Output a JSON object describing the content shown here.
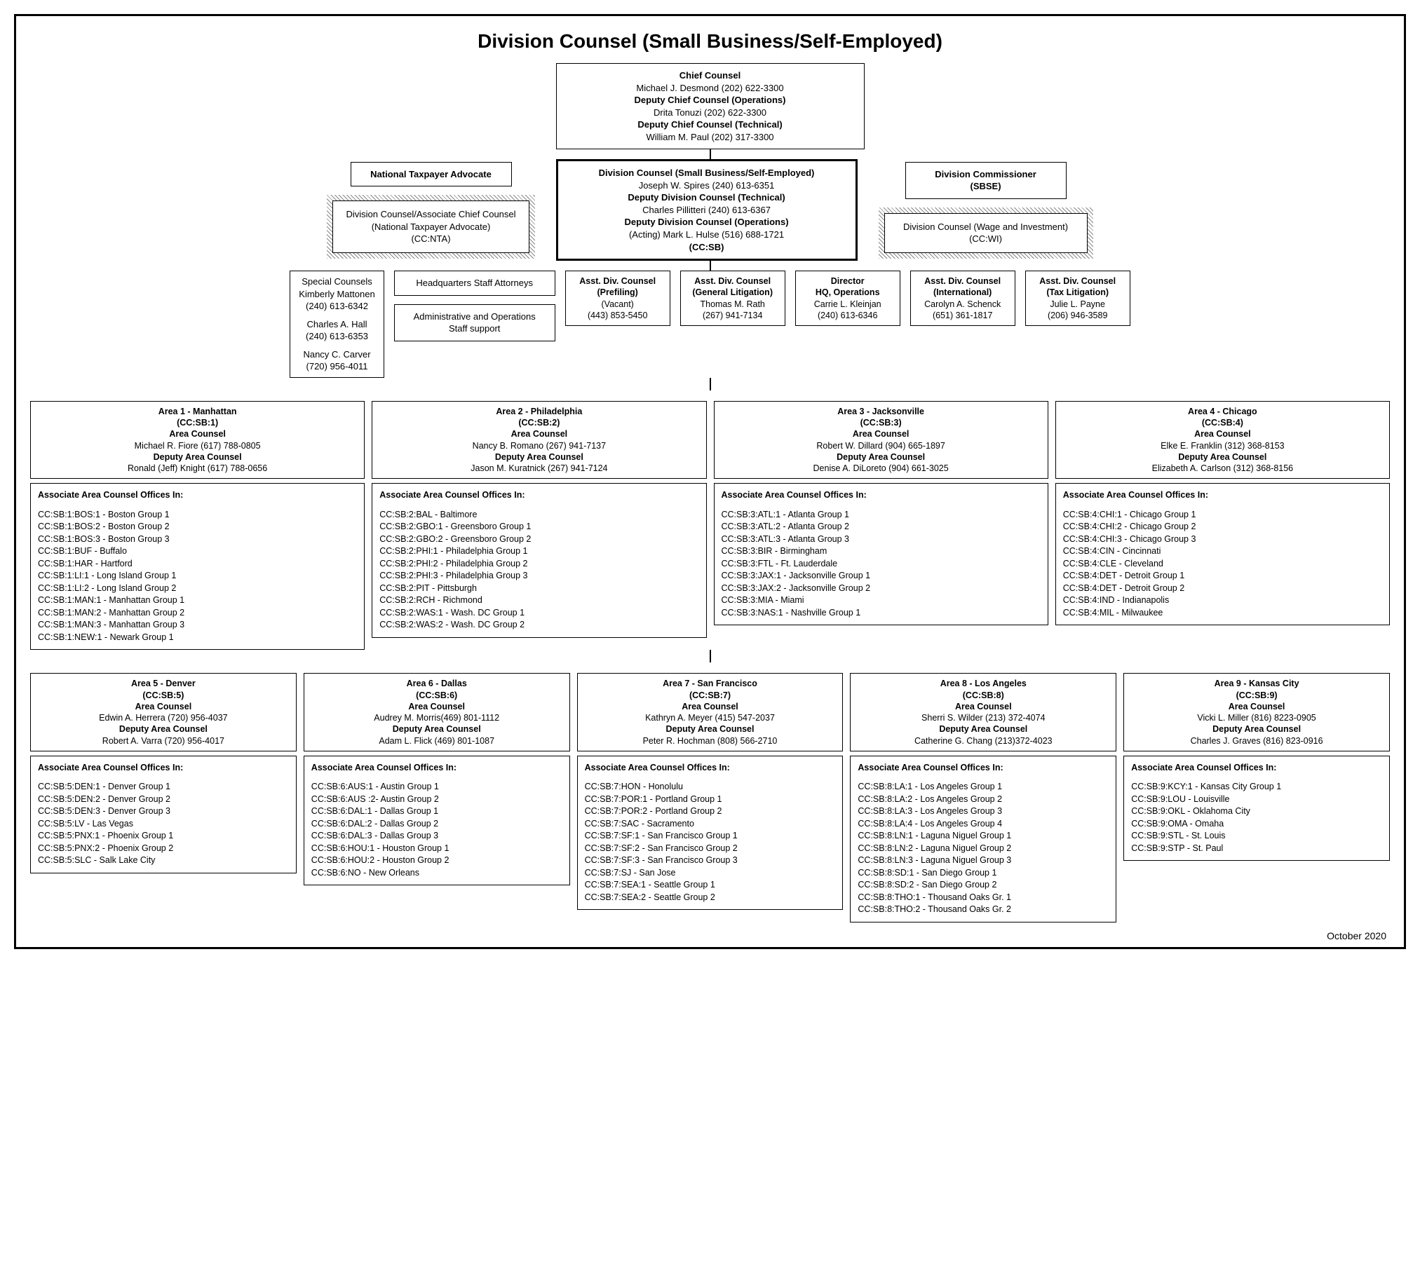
{
  "title": "Division Counsel (Small Business/Self-Employed)",
  "footer_date": "October 2020",
  "top": {
    "chief_counsel_title": "Chief Counsel",
    "chief_counsel_name": "Michael J. Desmond  (202) 622-3300",
    "dcc_ops_title": "Deputy Chief Counsel (Operations)",
    "dcc_ops_name": "Drita Tonuzi  (202) 622-3300",
    "dcc_tech_title": "Deputy Chief Counsel (Technical)",
    "dcc_tech_name": "William M. Paul  (202) 317-3300"
  },
  "nta_label": "National Taxpayer Advocate",
  "div_commissioner": {
    "line1": "Division Commissioner",
    "line2": "(SBSE)"
  },
  "nta_box": {
    "line1": "Division Counsel/Associate Chief Counsel",
    "line2": "(National Taxpayer Advocate)",
    "line3": "(CC:NTA)"
  },
  "center": {
    "l1": "Division Counsel (Small Business/Self-Employed)",
    "l2": "Joseph W. Spires  (240) 613-6351",
    "l3": "Deputy Division Counsel (Technical)",
    "l4": "Charles Pillitteri (240) 613-6367",
    "l5": "Deputy Division Counsel (Operations)",
    "l6": "(Acting)  Mark L. Hulse  (516) 688-1721",
    "l7": "(CC:SB)"
  },
  "wi_box": {
    "line1": "Division Counsel (Wage and Investment)",
    "line2": "(CC:WI)"
  },
  "special_counsels": {
    "title": "Special Counsels",
    "p1_name": "Kimberly Mattonen",
    "p1_phone": "(240) 613-6342",
    "p2_name": "Charles A. Hall",
    "p2_phone": "(240) 613-6353",
    "p3_name": "Nancy C. Carver",
    "p3_phone": "(720) 956-4011"
  },
  "hq_staff": "Headquarters Staff Attorneys",
  "admin_ops": {
    "l1": "Administrative and Operations",
    "l2": "Staff support"
  },
  "adc": {
    "prefiling": {
      "t": "Asst. Div. Counsel",
      "s": "(Prefiling)",
      "n": "(Vacant)",
      "p": "(443)  853-5450"
    },
    "genlit": {
      "t": "Asst. Div. Counsel",
      "s": "(General Litigation)",
      "n": "Thomas M. Rath",
      "p": "(267) 941-7134"
    },
    "director": {
      "t": "Director",
      "s": "HQ, Operations",
      "n": "Carrie L. Kleinjan",
      "p": "(240) 613-6346"
    },
    "intl": {
      "t": "Asst. Div. Counsel",
      "s": "(International)",
      "n": "Carolyn A. Schenck",
      "p": "(651) 361-1817"
    },
    "taxlit": {
      "t": "Asst. Div. Counsel",
      "s": "(Tax Litigation)",
      "n": "Julie L. Payne",
      "p": "(206) 946-3589"
    }
  },
  "areas_top": [
    {
      "title": "Area 1  -  Manhattan",
      "code": "(CC:SB:1)",
      "ac_label": "Area Counsel",
      "ac": "Michael R. Fiore  (617) 788-0805",
      "dac_label": "Deputy Area Counsel",
      "dac": "Ronald (Jeff) Knight  (617) 788-0656",
      "offices": [
        "CC:SB:1:BOS:1 - Boston Group 1",
        "CC:SB:1:BOS:2 - Boston Group 2",
        "CC:SB:1:BOS:3 - Boston Group 3",
        "CC:SB:1:BUF - Buffalo",
        "CC:SB:1:HAR - Hartford",
        "CC:SB:1:LI:1 - Long Island Group 1",
        "CC:SB:1:LI:2 - Long Island Group 2",
        "CC:SB:1:MAN:1 - Manhattan Group 1",
        "CC:SB:1:MAN:2 - Manhattan Group 2",
        "CC:SB:1:MAN:3 - Manhattan Group 3",
        "CC:SB:1:NEW:1 - Newark Group 1"
      ]
    },
    {
      "title": "Area 2  -  Philadelphia",
      "code": "(CC:SB:2)",
      "ac_label": "Area Counsel",
      "ac": "Nancy B. Romano (267) 941-7137",
      "dac_label": "Deputy Area Counsel",
      "dac": "Jason M. Kuratnick (267) 941-7124",
      "offices": [
        "CC:SB:2:BAL - Baltimore",
        "CC:SB:2:GBO:1 - Greensboro Group 1",
        "CC:SB:2:GBO:2 - Greensboro Group 2",
        "CC:SB:2:PHI:1 - Philadelphia Group 1",
        "CC:SB:2:PHI:2 - Philadelphia Group 2",
        "CC:SB:2:PHI:3 - Philadelphia Group 3",
        "CC:SB:2:PIT - Pittsburgh",
        "CC:SB:2:RCH - Richmond",
        "CC:SB:2:WAS:1 - Wash. DC Group 1",
        "CC:SB:2:WAS:2 - Wash. DC Group 2"
      ]
    },
    {
      "title": "Area 3 - Jacksonville",
      "code": "(CC:SB:3)",
      "ac_label": "Area Counsel",
      "ac": "Robert W. Dillard (904) 665-1897",
      "dac_label": "Deputy Area Counsel",
      "dac": "Denise A. DiLoreto (904) 661-3025",
      "offices": [
        "CC:SB:3:ATL:1 - Atlanta Group 1",
        "CC:SB:3:ATL:2 - Atlanta Group 2",
        "CC:SB:3:ATL:3 - Atlanta Group 3",
        "CC:SB:3:BIR - Birmingham",
        "CC:SB:3:FTL - Ft. Lauderdale",
        "CC:SB:3:JAX:1 - Jacksonville Group 1",
        "CC:SB:3:JAX:2 - Jacksonville Group 2",
        "CC:SB:3:MIA - Miami",
        "CC:SB:3:NAS:1 - Nashville Group 1"
      ]
    },
    {
      "title": "Area 4  -  Chicago",
      "code": "(CC:SB:4)",
      "ac_label": "Area Counsel",
      "ac": "Elke E. Franklin (312) 368-8153",
      "dac_label": "Deputy Area Counsel",
      "dac": "Elizabeth A. Carlson  (312) 368-8156",
      "offices": [
        "CC:SB:4:CHI:1 - Chicago Group 1",
        "CC:SB:4:CHI:2 - Chicago Group 2",
        "CC:SB:4:CHI:3 - Chicago Group 3",
        "CC:SB:4:CIN - Cincinnati",
        "CC:SB:4:CLE - Cleveland",
        "CC:SB:4:DET - Detroit Group 1",
        "CC:SB:4:DET - Detroit Group 2",
        "CC:SB:4:IND - Indianapolis",
        "CC:SB:4:MIL - Milwaukee"
      ]
    }
  ],
  "areas_bottom": [
    {
      "title": "Area 5 - Denver",
      "code": "(CC:SB:5)",
      "ac_label": "Area Counsel",
      "ac": "Edwin A. Herrera  (720) 956-4037",
      "dac_label": "Deputy Area Counsel",
      "dac": "Robert A. Varra  (720) 956-4017",
      "offices": [
        "CC:SB:5:DEN:1 - Denver Group 1",
        "CC:SB:5:DEN:2 - Denver Group 2",
        "CC:SB:5:DEN:3 - Denver Group 3",
        "CC:SB:5:LV - Las Vegas",
        "CC:SB:5:PNX:1 - Phoenix Group 1",
        "CC:SB:5:PNX:2 - Phoenix Group 2",
        "CC:SB:5:SLC - Salk Lake City"
      ]
    },
    {
      "title": "Area 6 - Dallas",
      "code": "(CC:SB:6)",
      "ac_label": "Area Counsel",
      "ac": "Audrey M. Morris(469) 801-1112",
      "dac_label": "Deputy Area Counsel",
      "dac": "Adam L. Flick (469) 801-1087",
      "offices": [
        "CC:SB:6:AUS:1 - Austin Group 1",
        "CC:SB:6:AUS :2- Austin Group 2",
        "CC:SB:6:DAL:1 - Dallas Group 1",
        "CC:SB:6:DAL:2 - Dallas Group 2",
        "CC:SB:6:DAL:3 - Dallas Group 3",
        "CC:SB:6:HOU:1 - Houston Group 1",
        "CC:SB:6:HOU:2 - Houston Group 2",
        "CC:SB:6:NO - New Orleans"
      ]
    },
    {
      "title": "Area 7 - San Francisco",
      "code": "(CC:SB:7)",
      "ac_label": "Area Counsel",
      "ac": "Kathryn A. Meyer  (415) 547-2037",
      "dac_label": "Deputy Area Counsel",
      "dac": "Peter R. Hochman (808) 566-2710",
      "offices": [
        "CC:SB:7:HON - Honolulu",
        "CC:SB:7:POR:1 - Portland Group 1",
        "CC:SB:7:POR:2 - Portland Group 2",
        "CC:SB:7:SAC - Sacramento",
        "CC:SB:7:SF:1 - San Francisco Group 1",
        "CC:SB:7:SF:2 - San Francisco Group 2",
        "CC:SB:7:SF:3 - San Francisco Group 3",
        "CC:SB:7:SJ - San Jose",
        "CC:SB:7:SEA:1 - Seattle Group 1",
        "CC:SB:7:SEA:2 - Seattle Group 2"
      ]
    },
    {
      "title": "Area 8  -  Los Angeles",
      "code": "(CC:SB:8)",
      "ac_label": "Area Counsel",
      "ac": "Sherri S. Wilder (213) 372-4074",
      "dac_label": "Deputy Area Counsel",
      "dac": "Catherine G. Chang  (213)372-4023",
      "offices": [
        "CC:SB:8:LA:1 - Los Angeles Group 1",
        "CC:SB:8:LA:2 - Los Angeles Group 2",
        "CC:SB:8:LA:3 - Los Angeles Group 3",
        "CC:SB:8:LA:4 - Los Angeles Group 4",
        "CC:SB:8:LN:1 - Laguna Niguel Group 1",
        "CC:SB:8:LN:2 - Laguna Niguel Group 2",
        "CC:SB:8:LN:3 - Laguna Niguel Group 3",
        "CC:SB:8:SD:1 - San Diego Group 1",
        "CC:SB:8:SD:2 - San Diego Group 2",
        "CC:SB:8:THO:1 - Thousand Oaks Gr. 1",
        "CC:SB:8:THO:2 - Thousand Oaks Gr. 2"
      ]
    },
    {
      "title": "Area 9  -  Kansas City",
      "code": "(CC:SB:9)",
      "ac_label": "Area Counsel",
      "ac": "Vicki L. Miller  (816) 8223-0905",
      "dac_label": "Deputy Area Counsel",
      "dac": "Charles J. Graves  (816) 823-0916",
      "offices": [
        "CC:SB:9:KCY:1 - Kansas City Group 1",
        "CC:SB:9:LOU - Louisville",
        "CC:SB:9:OKL - Oklahoma City",
        "CC:SB:9:OMA - Omaha",
        "CC:SB:9:STL - St. Louis",
        "CC:SB:9:STP - St. Paul"
      ]
    }
  ],
  "offices_heading": "Associate Area Counsel Offices In:"
}
